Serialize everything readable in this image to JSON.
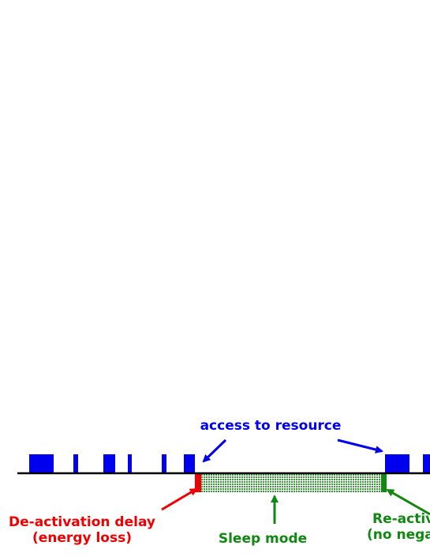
{
  "labels": {
    "access": "access to resource",
    "deactivation_line1": "De-activation delay",
    "deactivation_line2": "(energy loss)",
    "sleep": "Sleep mode",
    "reactivation_line1": "Re-activ",
    "reactivation_line2": "(no nega"
  }
}
